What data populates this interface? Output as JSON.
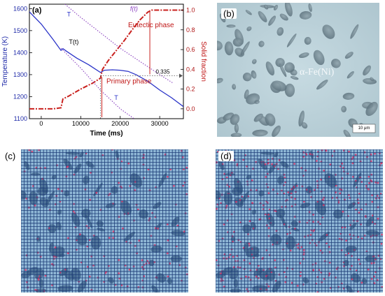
{
  "panel_labels": {
    "a": "(a)",
    "b": "(b)",
    "c": "(c)",
    "d": "(d)"
  },
  "micrograph": {
    "phase_label": "α-Fe(Ni)",
    "scale_bar": "10 μm"
  },
  "chart_data": {
    "type": "line",
    "xlabel": "Time (ms)",
    "ylabel_left": "Temperature (K)",
    "ylabel_right": "Solid fraction",
    "xlim": [
      -3000,
      36000
    ],
    "ylim_left": [
      1100,
      1620
    ],
    "ylim_right": [
      -0.1,
      1.06
    ],
    "x_ticks": [
      0,
      10000,
      20000,
      30000
    ],
    "y_ticks_left": [
      1100,
      1200,
      1300,
      1400,
      1500,
      1600
    ],
    "y_ticks_right": [
      0.0,
      0.2,
      0.4,
      0.6,
      0.8,
      1.0
    ],
    "annotations": {
      "temperature": "T(t)",
      "solid_fraction": "f(t)",
      "upper_limit": "T",
      "lower_limit": "T",
      "eutectic": "Eutectic phase",
      "primary": "Primary phase",
      "fraction_value": "0.335"
    },
    "series": [
      {
        "name": "T(t)",
        "axis": "left",
        "x": [
          -3000,
          0,
          3000,
          5000,
          5500,
          6500,
          9000,
          12000,
          15000,
          16000,
          18000,
          20000,
          22000,
          24000,
          27000,
          30000,
          33000,
          36000
        ],
        "y": [
          1585,
          1530,
          1460,
          1410,
          1418,
          1405,
          1375,
          1345,
          1310,
          1320,
          1322,
          1320,
          1315,
          1300,
          1270,
          1230,
          1195,
          1155
        ]
      },
      {
        "name": "f(t)",
        "axis": "right",
        "x": [
          -3000,
          0,
          3000,
          5000,
          5500,
          7000,
          10000,
          13000,
          15000,
          15500,
          17000,
          19000,
          21000,
          23000,
          25000,
          27000,
          28000,
          30000,
          33000,
          36000
        ],
        "y": [
          0.0,
          0.0,
          0.0,
          0.01,
          0.1,
          0.13,
          0.2,
          0.26,
          0.31,
          0.4,
          0.49,
          0.59,
          0.69,
          0.8,
          0.9,
          0.98,
          1.0,
          1.0,
          1.0,
          1.0
        ]
      },
      {
        "name": "upper-limit",
        "axis": "left",
        "x": [
          6000,
          10000,
          15000,
          20000,
          25000,
          30000,
          33500
        ],
        "y": [
          1620,
          1560,
          1490,
          1420,
          1360,
          1300,
          1260
        ]
      },
      {
        "name": "lower-limit",
        "axis": "left",
        "x": [
          5000,
          10000,
          15000,
          20000,
          23500
        ],
        "y": [
          1420,
          1330,
          1230,
          1145,
          1100
        ]
      }
    ]
  }
}
